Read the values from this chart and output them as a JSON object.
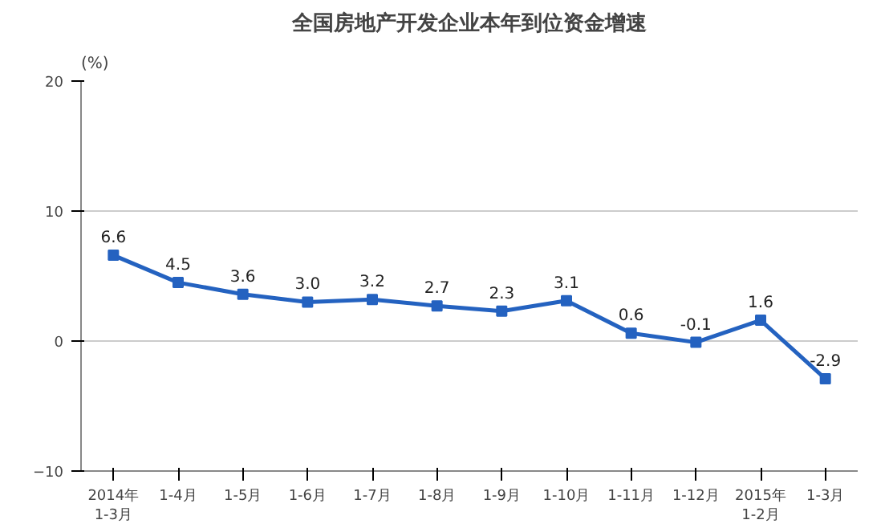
{
  "chart_data": {
    "type": "line",
    "title": "全国房地产开发企业本年到位资金增速",
    "ylabel": "(%)",
    "categories": [
      "2014年\n1-3月",
      "1-4月",
      "1-5月",
      "1-6月",
      "1-7月",
      "1-8月",
      "1-9月",
      "1-10月",
      "1-11月",
      "1-12月",
      "2015年\n1-2月",
      "1-3月"
    ],
    "series": [
      {
        "color": "#2462c0",
        "values": [
          6.6,
          4.5,
          3.6,
          3.0,
          3.2,
          2.7,
          2.3,
          3.1,
          0.6,
          -0.1,
          1.6,
          -2.9
        ],
        "value_labels": [
          "6.6",
          "4.5",
          "3.6",
          "3.0",
          "3.2",
          "2.7",
          "2.3",
          "3.1",
          "0.6",
          "-0.1",
          "1.6",
          "-2.9"
        ]
      }
    ],
    "ylim": [
      -10,
      20
    ],
    "yticks": [
      -10,
      0,
      10,
      20
    ],
    "grid": "y",
    "marker": "square",
    "line_style": "solid"
  }
}
